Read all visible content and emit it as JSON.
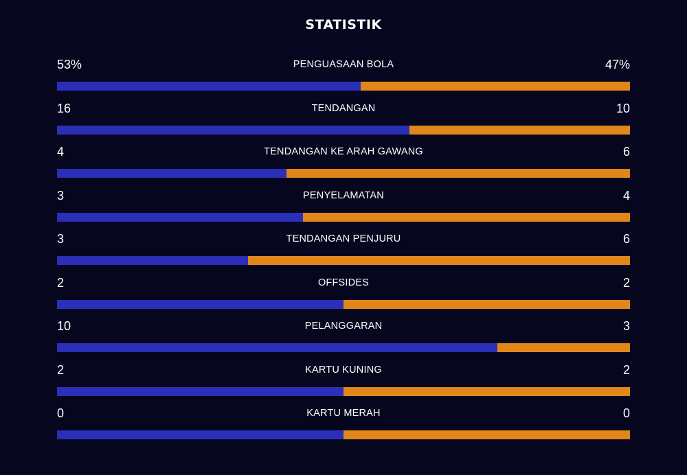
{
  "header": {
    "title": "STATISTIK"
  },
  "colors": {
    "background": "#07061f",
    "home_bar": "#2a2fb8",
    "away_bar": "#e0861a"
  },
  "stats": [
    {
      "label": "PENGUASAAN BOLA",
      "home": "53%",
      "away": "47%",
      "home_share": 0.53
    },
    {
      "label": "TENDANGAN",
      "home": "16",
      "away": "10",
      "home_share": 0.615
    },
    {
      "label": "TENDANGAN KE ARAH GAWANG",
      "home": "4",
      "away": "6",
      "home_share": 0.4
    },
    {
      "label": "PENYELAMATAN",
      "home": "3",
      "away": "4",
      "home_share": 0.429
    },
    {
      "label": "TENDANGAN PENJURU",
      "home": "3",
      "away": "6",
      "home_share": 0.333
    },
    {
      "label": "OFFSIDES",
      "home": "2",
      "away": "2",
      "home_share": 0.5
    },
    {
      "label": "PELANGGARAN",
      "home": "10",
      "away": "3",
      "home_share": 0.769
    },
    {
      "label": "KARTU KUNING",
      "home": "2",
      "away": "2",
      "home_share": 0.5
    },
    {
      "label": "KARTU MERAH",
      "home": "0",
      "away": "0",
      "home_share": 0.5
    }
  ]
}
